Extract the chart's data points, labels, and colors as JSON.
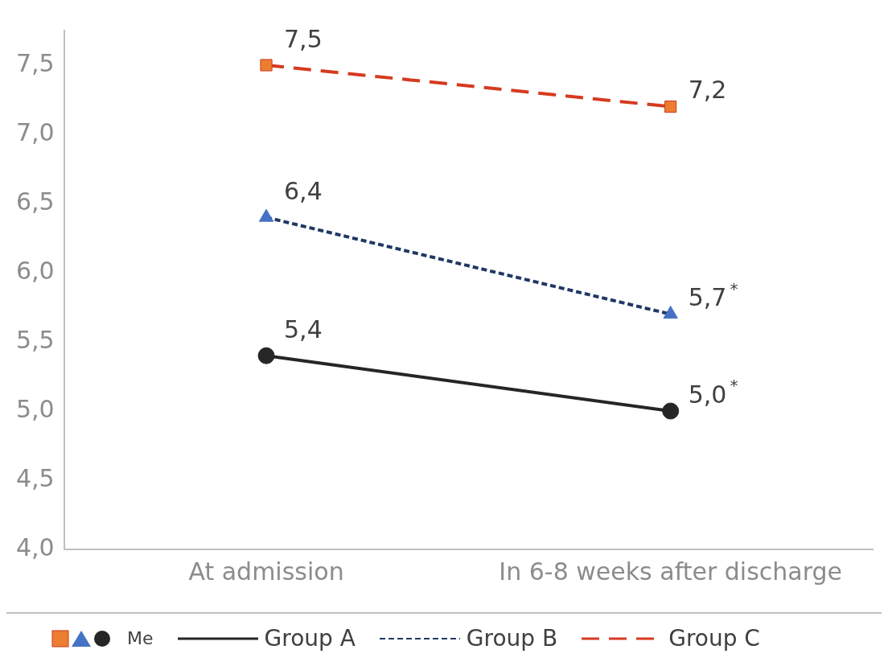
{
  "chart_data": {
    "type": "line",
    "categories": [
      "At admission",
      "In 6-8 weeks after discharge"
    ],
    "ylim": [
      4,
      7.75
    ],
    "yticks": [
      {
        "value": 4,
        "label": "4,0"
      },
      {
        "value": 4.5,
        "label": "4,5"
      },
      {
        "value": 5,
        "label": "5,0"
      },
      {
        "value": 5.5,
        "label": "5,5"
      },
      {
        "value": 6,
        "label": "6,0"
      },
      {
        "value": 6.5,
        "label": "6,5"
      },
      {
        "value": 7,
        "label": "7,0"
      },
      {
        "value": 7.5,
        "label": "7,5"
      }
    ],
    "grid": false,
    "legend": "bottom",
    "annotations": [
      "Me"
    ],
    "series": [
      {
        "name": "Group A",
        "color": "#262626",
        "marker": "circle",
        "colors": [
          "#262626",
          "#262626"
        ],
        "line_style": "solid",
        "values": [
          5.4,
          5.0
        ],
        "value_labels": [
          "5,4",
          "5,0$^{*}$"
        ]
      },
      {
        "name": "Group B",
        "color": "#203864",
        "marker": "triangle",
        "colors": [
          "#4472c4",
          "#4472c4"
        ],
        "line_style": "dotted",
        "values": [
          6.4,
          5.7
        ],
        "value_labels": [
          "6,4",
          "5,7$^{*}$"
        ]
      },
      {
        "name": "Group C",
        "color": "#d63a20",
        "marker": "square",
        "colors": [
          "#ed7d31",
          "#ed7d31"
        ],
        "line_style": "dashed",
        "values": [
          7.5,
          7.2
        ],
        "value_labels": [
          "7,5",
          "7,2"
        ]
      }
    ]
  }
}
